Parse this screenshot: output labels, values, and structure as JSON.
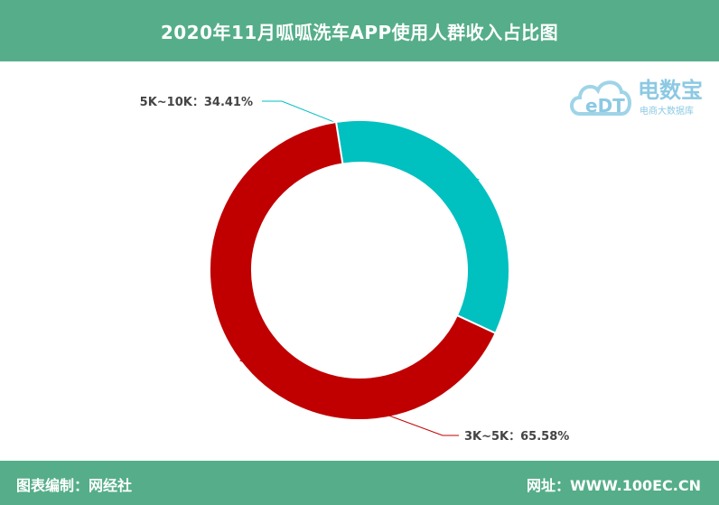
{
  "header": {
    "title": "2020年11月呱呱洗车APP使用人群收入占比图"
  },
  "footer": {
    "left": "图表编制：网经社",
    "right": "网址：WWW.100EC.CN"
  },
  "watermark": {
    "brand": "电数宝",
    "subtitle": "电商大数据库",
    "logo_text": "eDT"
  },
  "colors": {
    "header_bg": "#55ae89",
    "series": [
      "#00c0c0",
      "#c00000"
    ]
  },
  "chart_data": {
    "type": "pie",
    "style": "donut",
    "title": "2020年11月呱呱洗车APP使用人群收入占比图",
    "slices": [
      {
        "label": "5K~10K",
        "value": 34.41,
        "display": "5K~10K：34.41%",
        "color": "#00c0c0"
      },
      {
        "label": "3K~5K",
        "value": 65.58,
        "display": "3K~5K：65.58%",
        "color": "#c00000"
      }
    ],
    "start_angle_deg": -99,
    "legend": "none"
  }
}
